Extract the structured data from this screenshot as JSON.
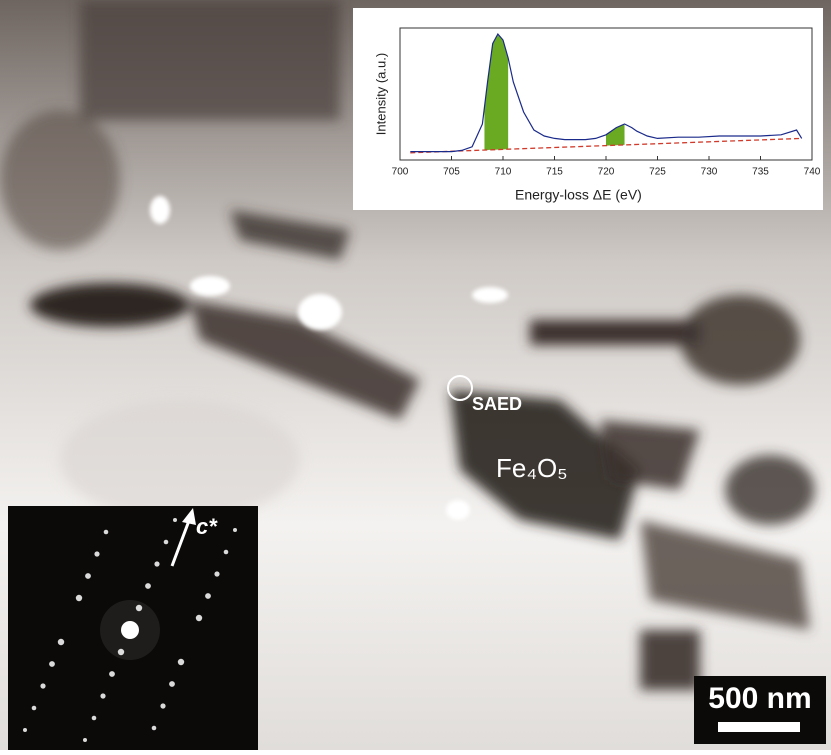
{
  "micrograph": {
    "saed_label": "SAED",
    "phase_label": "Fe₄O₅",
    "direction_label": "c*",
    "scale_bar": "500 nm"
  },
  "chart_data": {
    "type": "line",
    "xlabel": "Energy-loss ΔE (eV)",
    "ylabel": "Intensity (a.u.)",
    "x": [
      701,
      703,
      705,
      706,
      707,
      708,
      708.5,
      709,
      709.5,
      710,
      710.5,
      711,
      712,
      713,
      714,
      715,
      716,
      717,
      718,
      719,
      720,
      721,
      721.8,
      722.5,
      723,
      724,
      725,
      727,
      729,
      731,
      733,
      735,
      737,
      738.5,
      739
    ],
    "values": [
      0.02,
      0.02,
      0.02,
      0.03,
      0.06,
      0.25,
      0.6,
      0.92,
      1.0,
      0.95,
      0.8,
      0.6,
      0.35,
      0.2,
      0.15,
      0.13,
      0.12,
      0.12,
      0.12,
      0.13,
      0.16,
      0.22,
      0.25,
      0.22,
      0.19,
      0.15,
      0.13,
      0.14,
      0.14,
      0.15,
      0.15,
      0.15,
      0.16,
      0.2,
      0.13
    ],
    "color": "#1a2a8a",
    "baseline": {
      "x": [
        701,
        739
      ],
      "values": [
        0.01,
        0.13
      ],
      "color": "#d03a2a"
    },
    "shaded": [
      {
        "x": [
          708.2,
          710.5
        ],
        "color": "#6aaa22"
      },
      {
        "x": [
          720,
          721.8
        ],
        "color": "#6aaa22"
      }
    ],
    "xlim": [
      700,
      740
    ],
    "xticks": [
      700,
      705,
      710,
      715,
      720,
      725,
      730,
      735,
      740
    ],
    "ylim": [
      -0.05,
      1.05
    ]
  }
}
